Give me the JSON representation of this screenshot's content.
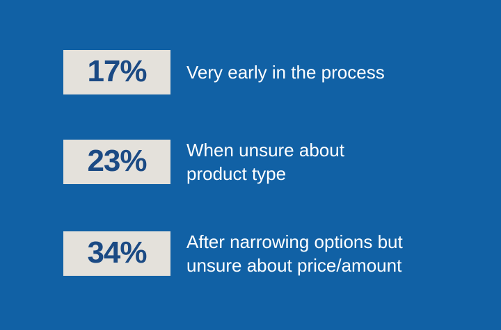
{
  "colors": {
    "background": "#1161A5",
    "box_background": "#E4E1DB",
    "percent_text": "#1B4A84",
    "label_text": "#FFFFFF"
  },
  "stats": [
    {
      "percent": "17%",
      "label": "Very early in the process",
      "lines": [
        "Very early in the process"
      ]
    },
    {
      "percent": "23%",
      "label": "When unsure about product type",
      "lines": [
        "When unsure about",
        "product type"
      ]
    },
    {
      "percent": "34%",
      "label": "After narrowing options but unsure about price/amount",
      "lines": [
        "After narrowing options but",
        "unsure about price/amount"
      ]
    }
  ],
  "chart_data": {
    "type": "table",
    "title": "",
    "categories": [
      "Very early in the process",
      "When unsure about product type",
      "After narrowing options but unsure about price/amount"
    ],
    "values": [
      17,
      23,
      34
    ],
    "unit": "%",
    "layout": "percentage boxes with labels, stacked vertically on blue background"
  }
}
